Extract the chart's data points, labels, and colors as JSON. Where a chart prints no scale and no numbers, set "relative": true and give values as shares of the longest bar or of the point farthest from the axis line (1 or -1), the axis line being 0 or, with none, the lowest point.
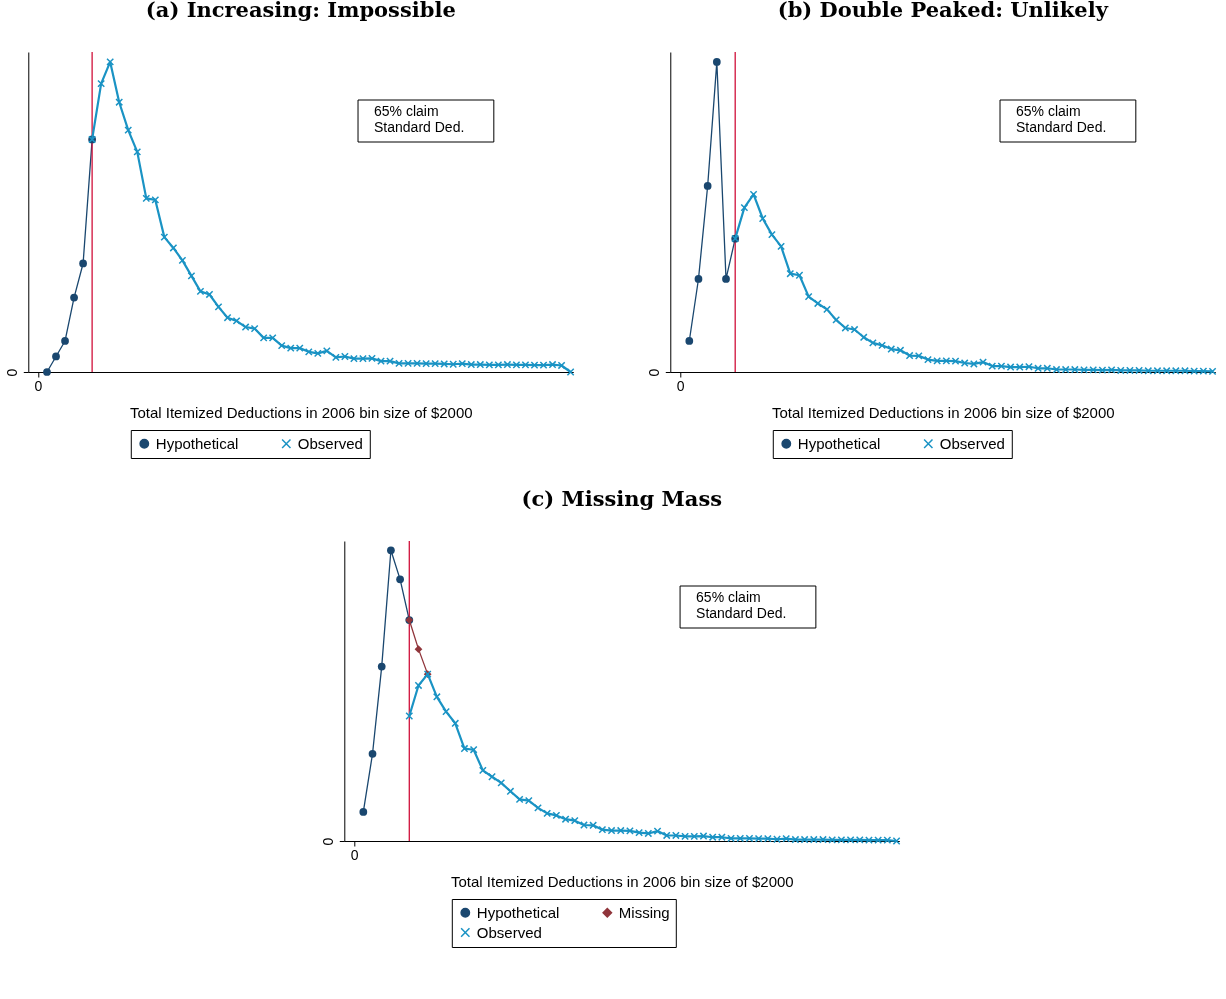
{
  "chart_data": [
    {
      "type": "line",
      "title": "(a) Increasing: Impossible",
      "xlabel": "Total Itemized Deductions in 2006 bin size of $2000",
      "relative": true,
      "legend": "bottom",
      "categories": [
        null,
        null,
        null,
        null,
        null,
        null,
        null,
        null,
        null,
        null,
        null,
        null,
        null,
        null,
        null,
        null,
        null,
        null,
        null,
        null,
        null,
        null,
        null,
        null,
        null,
        null,
        null,
        null,
        null,
        null,
        null,
        null,
        null,
        null,
        null,
        null,
        null,
        null,
        null,
        null,
        null,
        null,
        null,
        null,
        null,
        null,
        null,
        null,
        null,
        null,
        null,
        null,
        null,
        null,
        null,
        null,
        null,
        null,
        null,
        null
      ],
      "annotations": [
        "65% claim\nStandard Ded.",
        "0",
        "0"
      ],
      "series": [
        {
          "name": "Hypothetical",
          "color": "#1a476f",
          "marker": "circle",
          "values": [
            null,
            0,
            0.05,
            0.1,
            0.24,
            0.35,
            0.75,
            null,
            null,
            null,
            null,
            null,
            null,
            null,
            null,
            null,
            null,
            null,
            null,
            null,
            null,
            null,
            null,
            null,
            null,
            null,
            null,
            null,
            null,
            null,
            null,
            null,
            null,
            null,
            null,
            null,
            null,
            null,
            null,
            null,
            null,
            null,
            null,
            null,
            null,
            null,
            null,
            null,
            null,
            null,
            null,
            null,
            null,
            null,
            null,
            null,
            null,
            null,
            null,
            null
          ]
        },
        {
          "name": "Observed",
          "color": "#1a93c4",
          "marker": "cross",
          "values": [
            null,
            null,
            null,
            null,
            null,
            null,
            0.75,
            0.93,
            1,
            0.87,
            0.78,
            0.71,
            0.56,
            0.555,
            0.435,
            0.4,
            0.36,
            0.31,
            0.26,
            0.25,
            0.21,
            0.175,
            0.165,
            0.145,
            0.14,
            0.11,
            0.11,
            0.085,
            0.077,
            0.077,
            0.065,
            0.06,
            0.068,
            0.047,
            0.05,
            0.043,
            0.043,
            0.044,
            0.035,
            0.035,
            0.028,
            0.028,
            0.028,
            0.027,
            0.027,
            0.026,
            0.025,
            0.027,
            0.024,
            0.024,
            0.023,
            0.023,
            0.024,
            0.023,
            0.023,
            0.022,
            0.022,
            0.024,
            0.021,
            0
          ]
        }
      ]
    },
    {
      "type": "line",
      "title": "(b) Double Peaked: Unlikely",
      "xlabel": "Total Itemized Deductions in 2006 bin size of $2000",
      "relative": true,
      "legend": "bottom",
      "categories": [
        null,
        null,
        null,
        null,
        null,
        null,
        null,
        null,
        null,
        null,
        null,
        null,
        null,
        null,
        null,
        null,
        null,
        null,
        null,
        null,
        null,
        null,
        null,
        null,
        null,
        null,
        null,
        null,
        null,
        null,
        null,
        null,
        null,
        null,
        null,
        null,
        null,
        null,
        null,
        null,
        null,
        null,
        null,
        null,
        null,
        null,
        null,
        null,
        null,
        null,
        null,
        null,
        null,
        null,
        null,
        null,
        null,
        null,
        null
      ],
      "annotations": [
        "65% claim\nStandard Ded.",
        "0",
        "0"
      ],
      "series": [
        {
          "name": "Hypothetical",
          "color": "#1a476f",
          "marker": "circle",
          "values": [
            null,
            0.1,
            0.3,
            0.6,
            1,
            0.3,
            0.43,
            null,
            null,
            null,
            null,
            null,
            null,
            null,
            null,
            null,
            null,
            null,
            null,
            null,
            null,
            null,
            null,
            null,
            null,
            null,
            null,
            null,
            null,
            null,
            null,
            null,
            null,
            null,
            null,
            null,
            null,
            null,
            null,
            null,
            null,
            null,
            null,
            null,
            null,
            null,
            null,
            null,
            null,
            null,
            null,
            null,
            null,
            null,
            null,
            null,
            null,
            null,
            null
          ]
        },
        {
          "name": "Observed",
          "color": "#1a93c4",
          "marker": "cross",
          "values": [
            null,
            null,
            null,
            null,
            null,
            null,
            0.43,
            0.53,
            0.573,
            0.495,
            0.443,
            0.405,
            0.317,
            0.312,
            0.243,
            0.221,
            0.202,
            0.168,
            0.142,
            0.137,
            0.112,
            0.094,
            0.086,
            0.074,
            0.07,
            0.053,
            0.052,
            0.04,
            0.036,
            0.036,
            0.035,
            0.029,
            0.026,
            0.032,
            0.019,
            0.019,
            0.016,
            0.016,
            0.017,
            0.012,
            0.012,
            0.008,
            0.008,
            0.008,
            0.007,
            0.007,
            0.006,
            0.007,
            0.005,
            0.005,
            0.005,
            0.004,
            0.004,
            0.004,
            0.004,
            0.004,
            0.003,
            0.003,
            0.002
          ]
        }
      ]
    },
    {
      "type": "line",
      "title": "(c) Missing Mass",
      "xlabel": "Total Itemized Deductions in 2006 bin size of $2000",
      "relative": true,
      "legend": "bottom",
      "categories": [
        null,
        null,
        null,
        null,
        null,
        null,
        null,
        null,
        null,
        null,
        null,
        null,
        null,
        null,
        null,
        null,
        null,
        null,
        null,
        null,
        null,
        null,
        null,
        null,
        null,
        null,
        null,
        null,
        null,
        null,
        null,
        null,
        null,
        null,
        null,
        null,
        null,
        null,
        null,
        null,
        null,
        null,
        null,
        null,
        null,
        null,
        null,
        null,
        null,
        null,
        null,
        null,
        null,
        null,
        null,
        null,
        null,
        null,
        null,
        null
      ],
      "annotations": [
        "65% claim\nStandard Ded.",
        "0",
        "0"
      ],
      "series": [
        {
          "name": "Hypothetical",
          "color": "#1a476f",
          "marker": "circle",
          "values": [
            null,
            0.1,
            0.3,
            0.6,
            1,
            0.9,
            0.76,
            null,
            null,
            null,
            null,
            null,
            null,
            null,
            null,
            null,
            null,
            null,
            null,
            null,
            null,
            null,
            null,
            null,
            null,
            null,
            null,
            null,
            null,
            null,
            null,
            null,
            null,
            null,
            null,
            null,
            null,
            null,
            null,
            null,
            null,
            null,
            null,
            null,
            null,
            null,
            null,
            null,
            null,
            null,
            null,
            null,
            null,
            null,
            null,
            null,
            null,
            null,
            null,
            null
          ]
        },
        {
          "name": "Missing",
          "color": "#90353b",
          "marker": "diamond",
          "values": [
            null,
            null,
            null,
            null,
            null,
            null,
            0.76,
            0.66,
            0.574,
            null,
            null,
            null,
            null,
            null,
            null,
            null,
            null,
            null,
            null,
            null,
            null,
            null,
            null,
            null,
            null,
            null,
            null,
            null,
            null,
            null,
            null,
            null,
            null,
            null,
            null,
            null,
            null,
            null,
            null,
            null,
            null,
            null,
            null,
            null,
            null,
            null,
            null,
            null,
            null,
            null,
            null,
            null,
            null,
            null,
            null,
            null,
            null,
            null,
            null,
            null
          ]
        },
        {
          "name": "Observed",
          "color": "#1a93c4",
          "marker": "cross",
          "values": [
            null,
            null,
            null,
            null,
            null,
            null,
            0.43,
            0.535,
            0.574,
            0.496,
            0.445,
            0.405,
            0.318,
            0.314,
            0.243,
            0.221,
            0.2,
            0.171,
            0.143,
            0.139,
            0.114,
            0.095,
            0.088,
            0.075,
            0.07,
            0.055,
            0.054,
            0.039,
            0.036,
            0.036,
            0.035,
            0.029,
            0.026,
            0.034,
            0.019,
            0.019,
            0.016,
            0.016,
            0.017,
            0.013,
            0.013,
            0.009,
            0.009,
            0.009,
            0.008,
            0.008,
            0.006,
            0.008,
            0.005,
            0.005,
            0.005,
            0.005,
            0.004,
            0.004,
            0.004,
            0.004,
            0.003,
            0.003,
            0.003,
            0
          ]
        }
      ]
    }
  ]
}
